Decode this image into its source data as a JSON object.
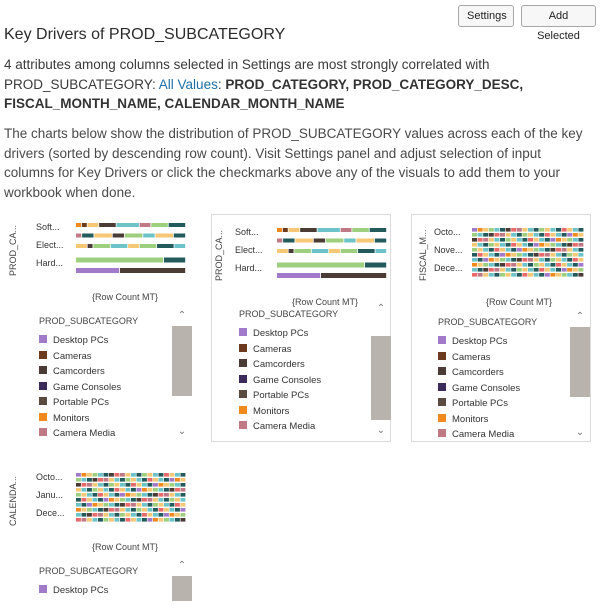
{
  "toolbar": {
    "settings_label": "Settings",
    "add_selected_label": "Add Selected"
  },
  "header": {
    "title": "Key Drivers of PROD_SUBCATEGORY",
    "summary_prefix": "4 attributes among columns selected in Settings are most strongly correlated with PROD_SUBCATEGORY: ",
    "all_values_link": "All Values",
    "attributes": "PROD_CATEGORY, PROD_CATEGORY_DESC, FISCAL_MONTH_NAME, CALENDAR_MONTH_NAME",
    "description": "The charts below show the distribution of PROD_SUBCATEGORY values across each of the key drivers (sorted by descending row count). Visit Settings panel and adjust selection of input columns for Key Drivers or click the checkmarks above any of the visuals to add them to your workbook when done."
  },
  "colors": {
    "Desktop PCs": "#a17ac9",
    "Cameras": "#6b3a1f",
    "Camcorders": "#4a3b35",
    "Game Consoles": "#3b2a5a",
    "Portable PCs": "#5a4a3f",
    "Monitors": "#f08a1f",
    "Camera Media": "#c07a85",
    "Other 1": "#9dcf7e",
    "Other 2": "#f6c774",
    "Other 3": "#6cc4c9",
    "Other 4": "#235a5c",
    "Other 5": "#e96a6a"
  },
  "legend": {
    "title": "PROD_SUBCATEGORY",
    "items": [
      "Desktop PCs",
      "Cameras",
      "Camcorders",
      "Game Consoles",
      "Portable PCs",
      "Monitors",
      "Camera Media"
    ]
  },
  "charts": [
    {
      "ylabel": "PROD_CA...",
      "xlabel": "{Row Count MT}",
      "categories": [
        "Soft...",
        "Elect...",
        "Hard..."
      ],
      "rows": [
        [
          [
            "Monitors",
            1
          ],
          [
            "Cameras",
            1
          ],
          [
            "Other 2",
            2
          ],
          [
            "Camcorders",
            3
          ],
          [
            "Other 3",
            4
          ],
          [
            "Camera Media",
            2
          ],
          [
            "Other 1",
            3
          ],
          [
            "Other 4",
            3
          ]
        ],
        [
          [
            "Camera Media",
            1
          ],
          [
            "Other 4",
            2
          ],
          [
            "Other 2",
            3
          ],
          [
            "Camcorders",
            2
          ],
          [
            "Other 1",
            3
          ],
          [
            "Other 3",
            2
          ],
          [
            "Other 2",
            3
          ],
          [
            "Other 4",
            2
          ]
        ],
        [
          [
            "Other 2",
            2
          ],
          [
            "Camcorders",
            1
          ],
          [
            "Other 1",
            3
          ],
          [
            "Other 3",
            3
          ],
          [
            "Other 2",
            2
          ],
          [
            "Other 1",
            3
          ],
          [
            "Other 4",
            3
          ],
          [
            "Other 3",
            2
          ]
        ],
        [
          [
            "Other 1",
            12
          ],
          [
            "Other 4",
            3
          ]
        ],
        [
          [
            "Desktop PCs",
            6
          ],
          [
            "Camcorders",
            9
          ]
        ]
      ]
    },
    {
      "ylabel": "PROD_CA...",
      "xlabel": "{Row Count MT}",
      "categories": [
        "Soft...",
        "Elect...",
        "Hard..."
      ],
      "rows": [
        [
          [
            "Monitors",
            1
          ],
          [
            "Cameras",
            1
          ],
          [
            "Other 2",
            2
          ],
          [
            "Camcorders",
            3
          ],
          [
            "Other 3",
            4
          ],
          [
            "Camera Media",
            2
          ],
          [
            "Other 1",
            3
          ],
          [
            "Other 4",
            3
          ]
        ],
        [
          [
            "Camera Media",
            1
          ],
          [
            "Other 4",
            2
          ],
          [
            "Other 2",
            3
          ],
          [
            "Camcorders",
            2
          ],
          [
            "Other 1",
            3
          ],
          [
            "Other 3",
            2
          ],
          [
            "Other 2",
            3
          ],
          [
            "Other 4",
            2
          ]
        ],
        [
          [
            "Other 2",
            2
          ],
          [
            "Camcorders",
            1
          ],
          [
            "Other 1",
            3
          ],
          [
            "Other 3",
            3
          ],
          [
            "Other 2",
            2
          ],
          [
            "Other 1",
            3
          ],
          [
            "Other 4",
            3
          ],
          [
            "Other 3",
            2
          ]
        ],
        [
          [
            "Other 1",
            12
          ],
          [
            "Other 4",
            3
          ]
        ],
        [
          [
            "Desktop PCs",
            6
          ],
          [
            "Camcorders",
            9
          ]
        ]
      ]
    },
    {
      "ylabel": "FISCAL_M...",
      "xlabel": "{Row Count MT}",
      "categories": [
        "Octo...",
        "Nove...",
        "Dece..."
      ],
      "rows": [],
      "striped": 10
    },
    {
      "ylabel": "CALENDA...",
      "xlabel": "{Row Count MT}",
      "categories": [
        "Octo...",
        "Janu...",
        "Dece..."
      ],
      "rows": [],
      "striped": 10
    }
  ]
}
